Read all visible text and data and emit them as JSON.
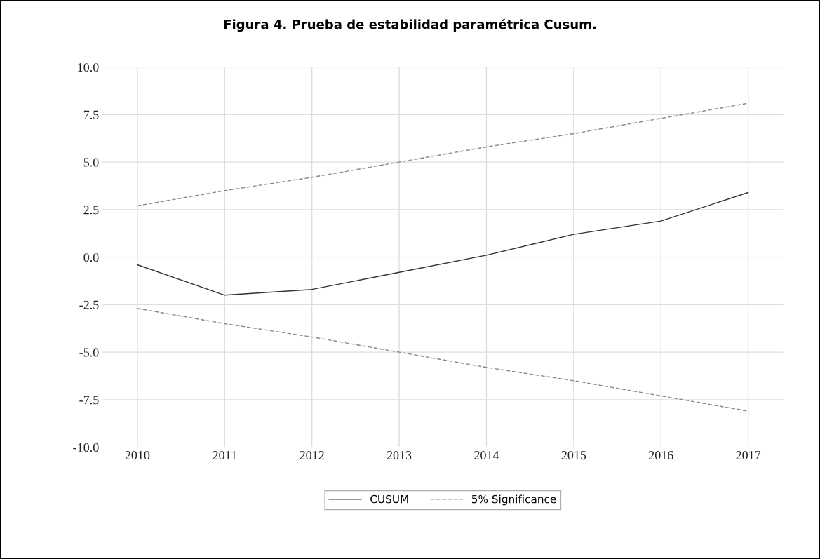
{
  "chart_data": {
    "type": "line",
    "title": "Figura 4. Prueba de estabilidad paramétrica Cusum.",
    "categories": [
      "2010",
      "2011",
      "2012",
      "2013",
      "2014",
      "2015",
      "2016",
      "2017"
    ],
    "series": [
      {
        "name": "CUSUM",
        "color": "#333333",
        "line_style": "solid",
        "values": [
          -0.4,
          -2.0,
          -1.7,
          -0.8,
          0.1,
          1.2,
          1.9,
          3.4
        ]
      },
      {
        "name": "5% Significance",
        "color": "#888888",
        "line_style": "dashed",
        "values": [
          2.7,
          3.5,
          4.2,
          5.0,
          5.8,
          6.5,
          7.3,
          8.1
        ]
      },
      {
        "color": "#888888",
        "line_style": "dashed",
        "values": [
          -2.7,
          -3.5,
          -4.2,
          -5.0,
          -5.8,
          -6.5,
          -7.3,
          -8.1
        ]
      }
    ],
    "ylim": [
      -10,
      10
    ],
    "yticks": [
      {
        "value": -10,
        "label": "-10.0"
      },
      {
        "value": -7.5,
        "label": "-7.5"
      },
      {
        "value": -5,
        "label": "-5.0"
      },
      {
        "value": -2.5,
        "label": "-2.5"
      },
      {
        "value": 0,
        "label": "0.0"
      },
      {
        "value": 2.5,
        "label": "2.5"
      },
      {
        "value": 5,
        "label": "5.0"
      },
      {
        "value": 7.5,
        "label": "7.5"
      },
      {
        "value": 10,
        "label": "10.0"
      }
    ],
    "grid": true,
    "legend": "bottom"
  }
}
